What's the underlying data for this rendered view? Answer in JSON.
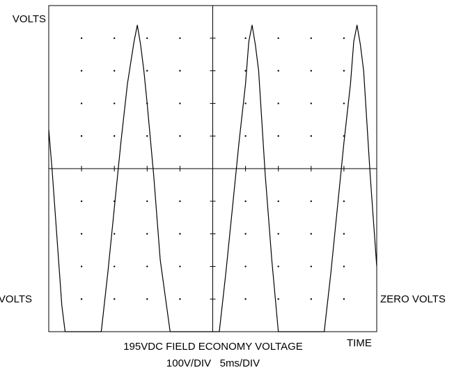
{
  "chart_data": {
    "type": "line",
    "title": "195VDC FIELD ECONOMY VOLTAGE",
    "subtitle": "100V/DIV   5ms/DIV",
    "ylabel": "VOLTS",
    "xlabel": "TIME",
    "left_ref_label": "VOLTS",
    "right_ref_label": "ZERO VOLTS",
    "volts_per_div": 100,
    "ms_per_div": 5,
    "x_units": "ms",
    "y_units": "V",
    "xlim": [
      0,
      50
    ],
    "ylim": [
      -200,
      300
    ],
    "divisions": {
      "x": 10,
      "y": 10
    },
    "grid": "dots",
    "series": [
      {
        "x": [
          0,
          0.5,
          1.0,
          1.5,
          2.0,
          2.5,
          3.0,
          3.5,
          4.0,
          7.0,
          8.0,
          9.0,
          10.0,
          11.0,
          12.0,
          13.0,
          13.5,
          14.0,
          14.5,
          15.0,
          16.0,
          17.0,
          18.5,
          25.0,
          26.0,
          27.0,
          28.0,
          29.0,
          30.0,
          30.5,
          31.0,
          31.5,
          32.0,
          33.0,
          34.0,
          35.0,
          41.0,
          42.0,
          43.0,
          44.0,
          45.0,
          46.0,
          46.5,
          47.0,
          47.5,
          48.0,
          49.0,
          50.0
        ],
        "y": [
          110,
          50,
          -20,
          -90,
          -160,
          -200,
          -200,
          -200,
          -200,
          -200,
          -200,
          -110,
          -10,
          90,
          180,
          245,
          270,
          240,
          200,
          150,
          40,
          -90,
          -200,
          -200,
          -200,
          -110,
          -10,
          90,
          180,
          245,
          270,
          240,
          200,
          40,
          -90,
          -200,
          -200,
          -200,
          -110,
          -10,
          90,
          180,
          245,
          270,
          240,
          200,
          40,
          -100
        ]
      }
    ]
  }
}
